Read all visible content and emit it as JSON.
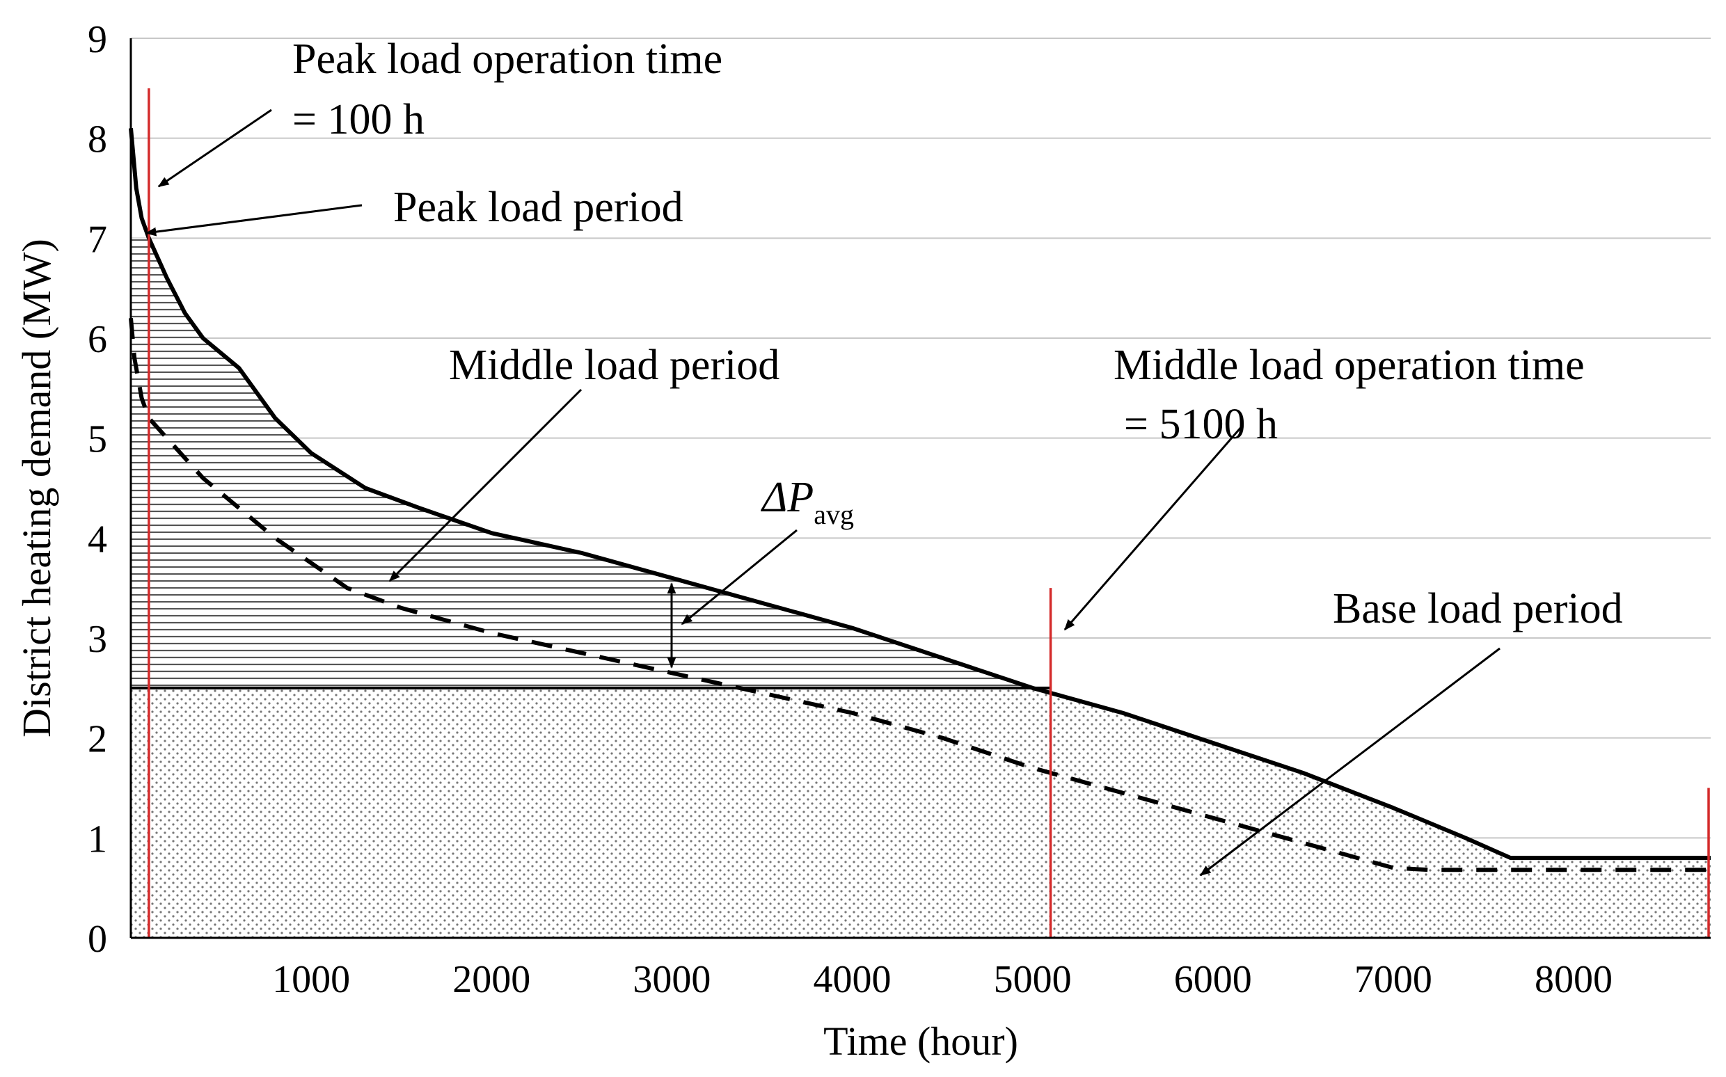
{
  "chart_data": {
    "type": "area",
    "title": "",
    "xlabel": "Time (hour)",
    "ylabel": "District heating demand (MW)",
    "xlim": [
      0,
      8760
    ],
    "ylim": [
      0,
      9
    ],
    "xticks": [
      1000,
      2000,
      3000,
      4000,
      5000,
      6000,
      7000,
      8000
    ],
    "yticks": [
      0,
      1,
      2,
      3,
      4,
      5,
      6,
      7,
      8,
      9
    ],
    "grid": "horizontal",
    "series": [
      {
        "style": "solid",
        "x": [
          0,
          10,
          30,
          60,
          100,
          200,
          300,
          400,
          500,
          600,
          800,
          1000,
          1300,
          1600,
          2000,
          2500,
          3000,
          3500,
          4000,
          4500,
          5000,
          5500,
          6000,
          6500,
          7000,
          7400,
          7650,
          8000,
          8760
        ],
        "y": [
          8.1,
          7.9,
          7.5,
          7.2,
          7.0,
          6.6,
          6.25,
          6.0,
          5.85,
          5.7,
          5.2,
          4.85,
          4.5,
          4.3,
          4.05,
          3.85,
          3.6,
          3.35,
          3.1,
          2.8,
          2.5,
          2.25,
          1.95,
          1.65,
          1.3,
          1.0,
          0.8,
          0.8,
          0.8
        ]
      },
      {
        "style": "dashed",
        "x": [
          0,
          20,
          60,
          100,
          200,
          400,
          600,
          800,
          1000,
          1200,
          1500,
          2000,
          2500,
          3000,
          3500,
          4000,
          4500,
          5000,
          5500,
          6000,
          6500,
          7000,
          7200,
          8000,
          8760
        ],
        "y": [
          6.2,
          5.8,
          5.4,
          5.2,
          5.0,
          4.6,
          4.3,
          4.0,
          3.75,
          3.5,
          3.3,
          3.05,
          2.85,
          2.65,
          2.45,
          2.25,
          2.0,
          1.7,
          1.45,
          1.2,
          0.95,
          0.7,
          0.68,
          0.68,
          0.68
        ]
      }
    ],
    "base_load_level": 2.5,
    "period_markers": [
      {
        "x": 100,
        "y_top": 8.5
      },
      {
        "x": 5100,
        "y_top": 3.5
      },
      {
        "x": 8760,
        "y_top": 1.5
      }
    ],
    "marker_color": "#d42a2a",
    "annotations": {
      "peak_time_line1": "Peak load operation time",
      "peak_time_line2": "= 100 h",
      "peak_period": "Peak load period",
      "middle_period": "Middle load period",
      "middle_time_line1": "Middle load operation time",
      "middle_time_line2": "= 5100 h",
      "delta_p": "ΔP",
      "delta_p_sub": "avg",
      "base_period": "Base load period"
    }
  }
}
